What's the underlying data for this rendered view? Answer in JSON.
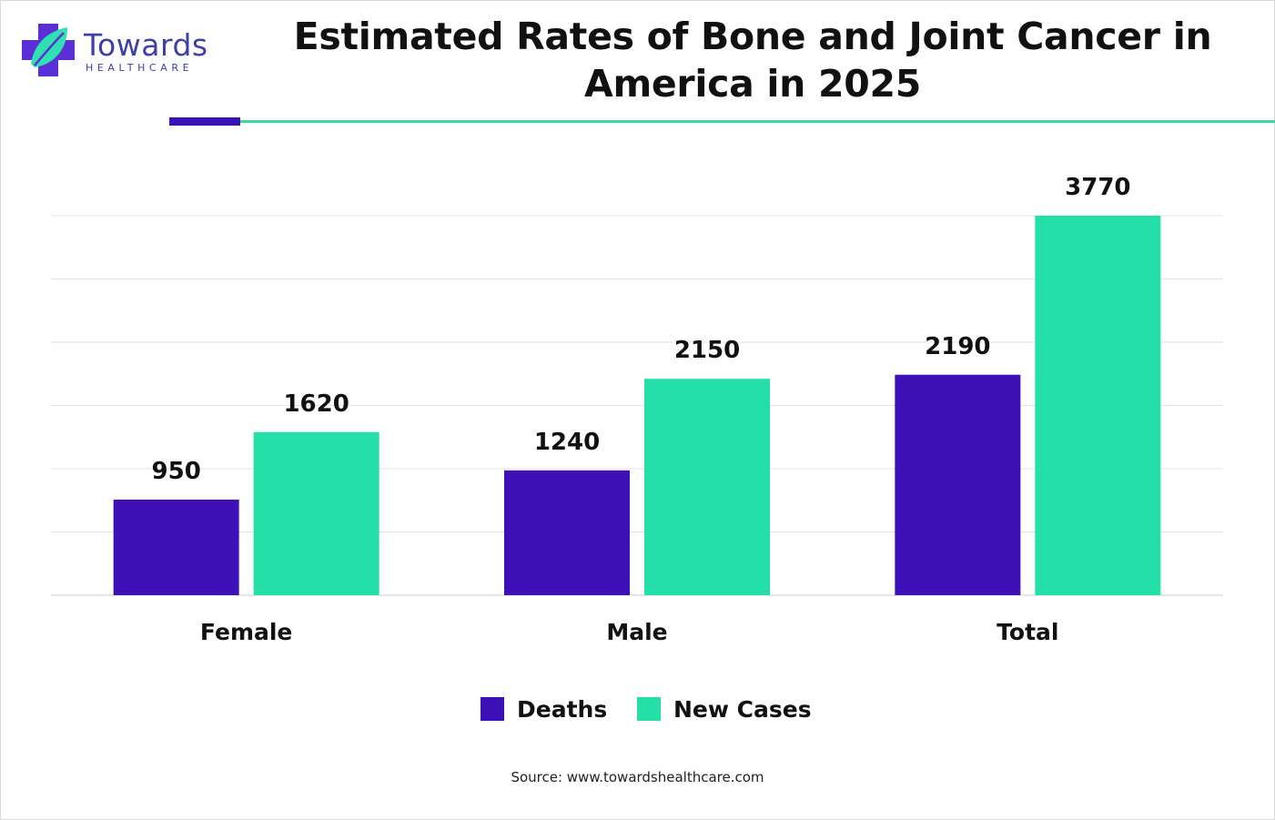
{
  "brand": {
    "name": "Towards",
    "tagline": "HEALTHCARE",
    "colors": {
      "primary": "#3a12b8",
      "accent": "#24e0a8",
      "logo_text": "#3f3fa8"
    }
  },
  "header": {
    "title": "Estimated Rates of Bone and Joint Cancer in America in 2025"
  },
  "chart_data": {
    "type": "bar",
    "title": "Estimated Rates of Bone and Joint Cancer in America in 2025",
    "categories": [
      "Female",
      "Male",
      "Total"
    ],
    "series": [
      {
        "name": "Deaths",
        "values": [
          950,
          1240,
          2190
        ],
        "color": "#3e10b8"
      },
      {
        "name": "New Cases",
        "values": [
          1620,
          2150,
          3770
        ],
        "color": "#24e0a8"
      }
    ],
    "xlabel": "",
    "ylabel": "",
    "ylim": [
      0,
      3770
    ],
    "grid": true,
    "legend": "bottom-center"
  },
  "legend": {
    "items": [
      {
        "label": "Deaths",
        "color": "#3e10b8"
      },
      {
        "label": "New Cases",
        "color": "#24e0a8"
      }
    ]
  },
  "footer": {
    "source": "Source: www.towardshealthcare.com"
  }
}
